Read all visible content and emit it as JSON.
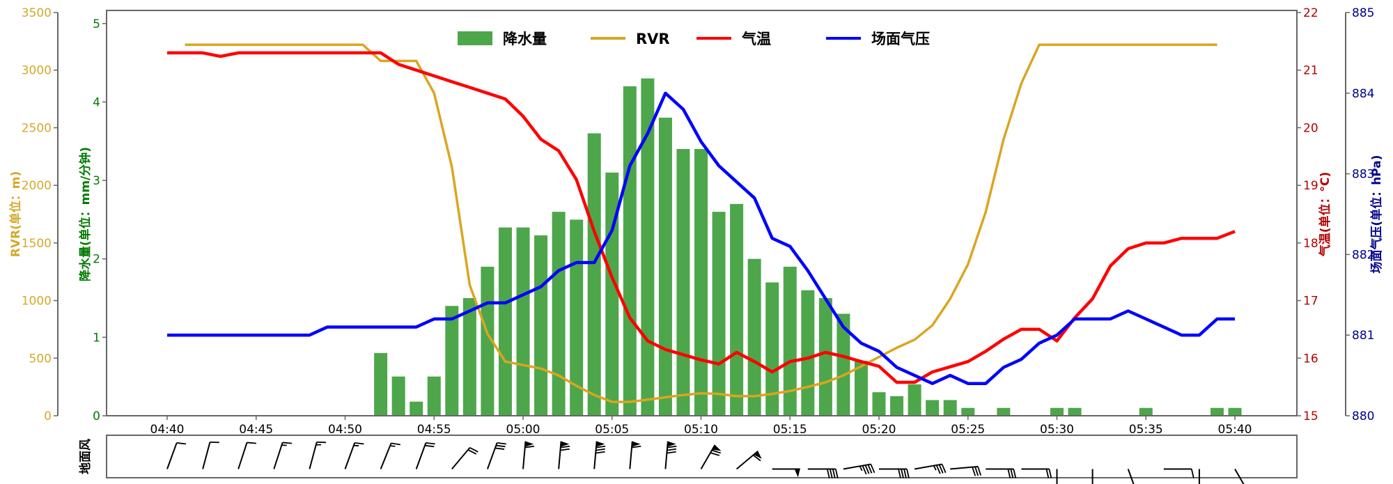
{
  "chart_data": {
    "type": "bar+line",
    "x_start": "04:40",
    "x_end": "05:40",
    "x_step_minutes": 1,
    "x_ticks": [
      "04:40",
      "04:45",
      "04:50",
      "04:55",
      "05:00",
      "05:05",
      "05:10",
      "05:15",
      "05:20",
      "05:25",
      "05:30",
      "05:35",
      "05:40"
    ],
    "legend": {
      "placement": "top-center",
      "entries": [
        "降水量",
        "RVR",
        "气温",
        "场面气压"
      ]
    },
    "axes": {
      "rvr": {
        "label": "RVR(单位：m)",
        "ylim": [
          0,
          3500
        ],
        "ticks": [
          0,
          500,
          1000,
          1500,
          2000,
          2500,
          3000,
          3500
        ],
        "color": "#d4a82a"
      },
      "precip": {
        "label": "降水量(单位：mm/分钟)",
        "ylim": [
          0,
          5.14
        ],
        "ticks": [
          0,
          1,
          2,
          3,
          4,
          5
        ],
        "color": "#007a00"
      },
      "temp": {
        "label": "气温(单位：°C)",
        "ylim": [
          15,
          22
        ],
        "ticks": [
          15,
          16,
          17,
          18,
          19,
          20,
          21,
          22
        ],
        "color": "#b40000"
      },
      "pressure": {
        "label": "场面气压(单位：hPa)",
        "ylim": [
          880,
          885
        ],
        "ticks": [
          880,
          881,
          882,
          883,
          884,
          885
        ],
        "color": "#00008b"
      }
    },
    "series": [
      {
        "name": "降水量",
        "type": "bar",
        "axis": "precip",
        "color": "#4ea64b",
        "values": [
          null,
          null,
          null,
          null,
          null,
          null,
          null,
          null,
          null,
          null,
          null,
          null,
          0.8,
          0.5,
          0.18,
          0.5,
          1.4,
          1.5,
          1.9,
          2.4,
          2.4,
          2.3,
          2.6,
          2.5,
          3.6,
          3.1,
          4.2,
          4.3,
          3.8,
          3.4,
          3.4,
          2.6,
          2.7,
          2.0,
          1.7,
          1.9,
          1.6,
          1.5,
          1.3,
          0.7,
          0.3,
          0.25,
          0.4,
          0.2,
          0.2,
          0.1,
          null,
          0.1,
          null,
          null,
          0.1,
          0.1,
          null,
          null,
          null,
          0.1,
          null,
          null,
          null,
          0.1,
          0.1
        ]
      },
      {
        "name": "RVR",
        "type": "line",
        "axis": "rvr",
        "color": "#daa520",
        "values": [
          null,
          3220,
          3220,
          3220,
          3220,
          3220,
          3220,
          3220,
          3220,
          3220,
          3220,
          3220,
          3080,
          3080,
          3080,
          2800,
          2160,
          1135,
          712,
          470,
          440,
          410,
          350,
          260,
          180,
          120,
          120,
          140,
          160,
          180,
          195,
          190,
          170,
          170,
          190,
          215,
          250,
          290,
          350,
          430,
          510,
          590,
          660,
          785,
          1015,
          1315,
          1770,
          2400,
          2885,
          3220,
          3220,
          3220,
          3220,
          3220,
          3220,
          3220,
          3220,
          3220,
          3220,
          3220,
          null
        ]
      },
      {
        "name": "气温",
        "type": "line",
        "axis": "temp",
        "color": "#ff0000",
        "values": [
          21.3,
          21.3,
          21.3,
          21.24,
          21.3,
          21.3,
          21.3,
          21.3,
          21.3,
          21.3,
          21.3,
          21.3,
          21.3,
          21.1,
          21.0,
          20.9,
          20.8,
          20.7,
          20.6,
          20.5,
          20.2,
          19.8,
          19.6,
          19.1,
          18.2,
          17.4,
          16.7,
          16.3,
          16.15,
          16.06,
          15.97,
          15.9,
          16.1,
          15.94,
          15.76,
          15.94,
          16.0,
          16.1,
          16.03,
          15.94,
          15.86,
          15.58,
          15.58,
          15.76,
          15.85,
          15.94,
          16.12,
          16.33,
          16.5,
          16.5,
          16.3,
          16.7,
          17.03,
          17.6,
          17.9,
          18.0,
          18.0,
          18.08,
          18.08,
          18.08,
          18.2
        ]
      },
      {
        "name": "场面气压",
        "type": "line",
        "axis": "pressure",
        "color": "#0000ff",
        "values": [
          881.0,
          881.0,
          881.0,
          881.0,
          881.0,
          881.0,
          881.0,
          881.0,
          881.0,
          881.1,
          881.1,
          881.1,
          881.1,
          881.1,
          881.1,
          881.2,
          881.2,
          881.3,
          881.4,
          881.4,
          881.5,
          881.6,
          881.8,
          881.9,
          881.9,
          882.3,
          883.1,
          883.5,
          884.0,
          883.8,
          883.4,
          883.1,
          882.9,
          882.7,
          882.2,
          882.1,
          881.8,
          881.45,
          881.1,
          880.9,
          880.8,
          880.6,
          880.5,
          880.4,
          880.5,
          880.4,
          880.4,
          880.6,
          880.7,
          880.9,
          881.0,
          881.2,
          881.2,
          881.2,
          881.3,
          881.2,
          881.1,
          881.0,
          881.0,
          881.2,
          881.2
        ]
      }
    ],
    "wind": {
      "label": "地面风",
      "interval_minutes": 2,
      "direction_deg": [
        20,
        15,
        18,
        18,
        15,
        20,
        22,
        20,
        40,
        20,
        5,
        5,
        5,
        5,
        5,
        30,
        50,
        90,
        90,
        80,
        90,
        80,
        85,
        90,
        90,
        180,
        180,
        160,
        90,
        180,
        150
      ],
      "speed": [
        4,
        4,
        4,
        6,
        6,
        6,
        6,
        8,
        8,
        12,
        24,
        28,
        32,
        24,
        32,
        28,
        24,
        20,
        16,
        18,
        16,
        14,
        12,
        12,
        8,
        4,
        6,
        8,
        4,
        2,
        4
      ]
    }
  }
}
